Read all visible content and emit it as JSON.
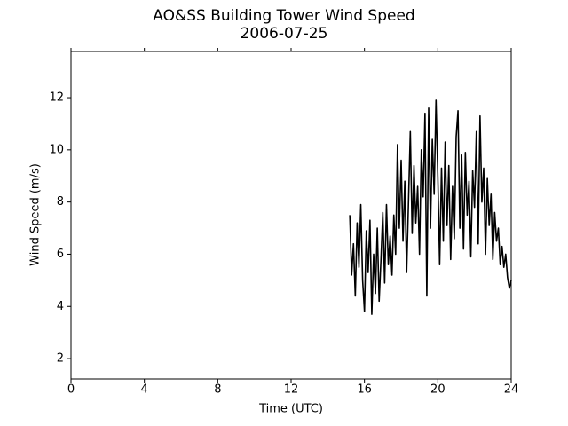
{
  "chart_data": {
    "type": "line",
    "title": "AO&SS Building Tower Wind Speed",
    "subtitle": "2006-07-25",
    "x_label": "Time (UTC)",
    "y_label": "Wind Speed (m/s)",
    "color": "#000000",
    "xlim": [
      0,
      24
    ],
    "xticks": [
      0,
      4,
      8,
      12,
      16,
      20,
      24
    ],
    "ylim": [
      1.22,
      13.77
    ],
    "yticks": [
      2,
      4,
      6,
      8,
      10,
      12
    ],
    "x": [
      15.2,
      15.3,
      15.4,
      15.5,
      15.6,
      15.7,
      15.8,
      15.9,
      16.0,
      16.1,
      16.2,
      16.3,
      16.4,
      16.5,
      16.6,
      16.7,
      16.8,
      16.9,
      17.0,
      17.1,
      17.2,
      17.3,
      17.4,
      17.5,
      17.6,
      17.7,
      17.8,
      17.9,
      18.0,
      18.1,
      18.2,
      18.3,
      18.4,
      18.5,
      18.6,
      18.7,
      18.8,
      18.9,
      19.0,
      19.1,
      19.2,
      19.3,
      19.4,
      19.5,
      19.6,
      19.7,
      19.8,
      19.9,
      20.0,
      20.1,
      20.2,
      20.3,
      20.4,
      20.5,
      20.6,
      20.7,
      20.8,
      20.9,
      21.0,
      21.1,
      21.2,
      21.3,
      21.4,
      21.5,
      21.6,
      21.7,
      21.8,
      21.9,
      22.0,
      22.1,
      22.2,
      22.3,
      22.4,
      22.5,
      22.6,
      22.7,
      22.8,
      22.9,
      23.0,
      23.1,
      23.2,
      23.3,
      23.4,
      23.5,
      23.6,
      23.7,
      23.8,
      23.9,
      24.0
    ],
    "values": [
      7.5,
      5.2,
      6.4,
      4.4,
      7.2,
      5.5,
      7.9,
      5.0,
      3.8,
      6.9,
      5.3,
      7.3,
      3.7,
      6.0,
      4.5,
      7.0,
      4.2,
      5.8,
      7.6,
      4.9,
      7.9,
      5.6,
      6.7,
      5.2,
      7.5,
      6.0,
      10.2,
      7.0,
      9.6,
      6.5,
      8.8,
      5.3,
      8.0,
      10.7,
      6.8,
      9.4,
      7.2,
      8.6,
      6.0,
      10.0,
      8.2,
      11.4,
      4.4,
      11.6,
      7.0,
      10.4,
      8.3,
      11.9,
      9.0,
      5.6,
      9.3,
      6.5,
      10.3,
      7.1,
      9.4,
      5.8,
      8.6,
      6.6,
      10.5,
      11.5,
      7.0,
      9.8,
      6.2,
      9.9,
      7.5,
      8.8,
      5.9,
      9.2,
      7.8,
      10.7,
      6.4,
      11.3,
      8.0,
      9.3,
      6.0,
      8.9,
      7.1,
      8.3,
      5.8,
      7.6,
      6.5,
      7.0,
      5.6,
      6.3,
      5.5,
      6.0,
      5.1,
      4.7,
      5.0
    ]
  }
}
